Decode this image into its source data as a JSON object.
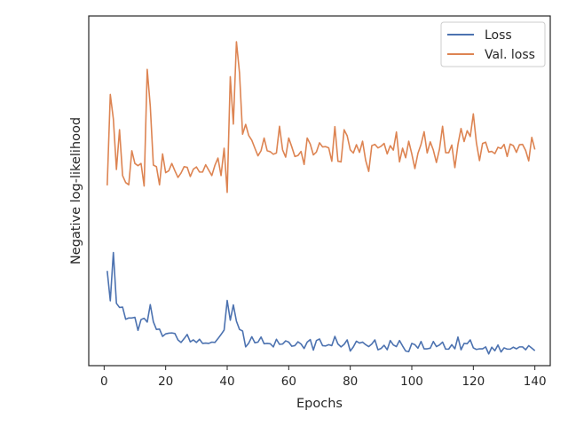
{
  "chart_data": {
    "type": "line",
    "title": "",
    "xlabel": "Epochs",
    "ylabel": "Negative log-likelihood",
    "xlim": [
      -5,
      145
    ],
    "ylim": [
      -5,
      105
    ],
    "xticks": [
      0,
      20,
      40,
      60,
      80,
      100,
      120,
      140
    ],
    "ytick_labels_shown": false,
    "grid": false,
    "legend_position": "top-right",
    "series": [
      {
        "name": "Loss",
        "color": "#4c72b0",
        "x": [
          1,
          2,
          3,
          4,
          5,
          6,
          7,
          8,
          9,
          10,
          11,
          12,
          13,
          14,
          15,
          16,
          17,
          18,
          19,
          20,
          21,
          22,
          23,
          24,
          25,
          26,
          27,
          28,
          29,
          30,
          31,
          32,
          33,
          34,
          35,
          36,
          37,
          38,
          39,
          40,
          41,
          42,
          43,
          44,
          45,
          46,
          47,
          48,
          49,
          50,
          51,
          52,
          53,
          54,
          55,
          56,
          57,
          58,
          59,
          60,
          61,
          62,
          63,
          64,
          65,
          66,
          67,
          68,
          69,
          70,
          71,
          72,
          73,
          74,
          75,
          76,
          77,
          78,
          79,
          80,
          81,
          82,
          83,
          84,
          85,
          86,
          87,
          88,
          89,
          90,
          91,
          92,
          93,
          94,
          95,
          96,
          97,
          98,
          99,
          100,
          101,
          102,
          103,
          104,
          105,
          106,
          107,
          108,
          109,
          110,
          111,
          112,
          113,
          114,
          115,
          116,
          117,
          118,
          119,
          120,
          121,
          122,
          123,
          124,
          125,
          126,
          127,
          128,
          129,
          130,
          131,
          132,
          133,
          134,
          135,
          136,
          137,
          138,
          139,
          140
        ],
        "values": [
          24.8,
          15.4,
          30.6,
          14.6,
          13.3,
          13.4,
          9.6,
          10.0,
          10.0,
          10.2,
          6.1,
          9.5,
          9.9,
          8.7,
          14.2,
          8.8,
          6.4,
          6.5,
          4.2,
          5.0,
          5.2,
          5.3,
          5.1,
          3.1,
          2.3,
          3.5,
          4.8,
          2.5,
          3.1,
          2.3,
          3.3,
          2.0,
          2.1,
          2.0,
          2.4,
          2.3,
          3.5,
          4.8,
          6.2,
          15.5,
          9.3,
          14.1,
          9.0,
          6.4,
          5.9,
          0.9,
          2.1,
          4.1,
          2.2,
          2.4,
          4.0,
          1.9,
          2.0,
          1.9,
          0.9,
          3.3,
          1.7,
          1.8,
          2.8,
          2.4,
          1.1,
          1.3,
          2.5,
          1.8,
          0.4,
          2.4,
          3.2,
          -0.1,
          2.9,
          3.4,
          1.3,
          1.2,
          1.6,
          1.3,
          4.2,
          1.8,
          0.9,
          1.7,
          3.1,
          -0.4,
          0.9,
          2.7,
          2.1,
          2.4,
          1.6,
          1.0,
          1.8,
          3.1,
          0.0,
          0.4,
          1.4,
          0.0,
          2.9,
          1.5,
          1.0,
          2.9,
          1.2,
          -0.4,
          -0.6,
          2.0,
          1.6,
          0.5,
          2.6,
          0.3,
          0.3,
          0.5,
          2.6,
          1.0,
          1.5,
          2.4,
          0.2,
          0.2,
          1.6,
          0.3,
          4.0,
          0.0,
          2.0,
          1.9,
          3.1,
          0.6,
          0.1,
          0.3,
          0.3,
          0.9,
          -1.3,
          0.8,
          -0.3,
          1.5,
          -0.7,
          0.6,
          0.2,
          0.2,
          0.8,
          0.3,
          0.9,
          0.9,
          0.0,
          1.3,
          0.5,
          -0.3
        ]
      },
      {
        "name": "Val. loss",
        "color": "#dd8452",
        "x": [
          1,
          2,
          3,
          4,
          5,
          6,
          7,
          8,
          9,
          10,
          11,
          12,
          13,
          14,
          15,
          16,
          17,
          18,
          19,
          20,
          21,
          22,
          23,
          24,
          25,
          26,
          27,
          28,
          29,
          30,
          31,
          32,
          33,
          34,
          35,
          36,
          37,
          38,
          39,
          40,
          41,
          42,
          43,
          44,
          45,
          46,
          47,
          48,
          49,
          50,
          51,
          52,
          53,
          54,
          55,
          56,
          57,
          58,
          59,
          60,
          61,
          62,
          63,
          64,
          65,
          66,
          67,
          68,
          69,
          70,
          71,
          72,
          73,
          74,
          75,
          76,
          77,
          78,
          79,
          80,
          81,
          82,
          83,
          84,
          85,
          86,
          87,
          88,
          89,
          90,
          91,
          92,
          93,
          94,
          95,
          96,
          97,
          98,
          99,
          100,
          101,
          102,
          103,
          104,
          105,
          106,
          107,
          108,
          109,
          110,
          111,
          112,
          113,
          114,
          115,
          116,
          117,
          118,
          119,
          120,
          121,
          122,
          123,
          124,
          125,
          126,
          127,
          128,
          129,
          130,
          131,
          132,
          133,
          134,
          135,
          136,
          137,
          138,
          139,
          140
        ],
        "values": [
          51.7,
          80.3,
          72.6,
          56.7,
          69.2,
          54.8,
          52.6,
          51.9,
          62.6,
          58.6,
          57.9,
          58.6,
          51.5,
          88.2,
          76.6,
          58.1,
          57.6,
          51.9,
          61.6,
          55.7,
          56.3,
          58.6,
          56.3,
          54.2,
          55.6,
          57.6,
          57.4,
          54.5,
          56.8,
          57.5,
          55.9,
          55.9,
          58.2,
          56.5,
          54.8,
          58.0,
          60.3,
          54.8,
          63.4,
          49.5,
          85.9,
          71.0,
          96.9,
          87.1,
          67.8,
          70.9,
          67.4,
          65.9,
          63.4,
          61.0,
          62.6,
          66.6,
          62.6,
          62.3,
          61.5,
          61.9,
          70.3,
          62.9,
          60.6,
          66.6,
          63.8,
          60.8,
          61.1,
          62.4,
          58.3,
          66.6,
          64.7,
          61.3,
          62.2,
          65.1,
          63.8,
          63.9,
          63.5,
          59.3,
          70.2,
          59.3,
          59.1,
          69.2,
          67.3,
          62.9,
          61.9,
          64.5,
          62.1,
          65.6,
          59.6,
          56.1,
          64.2,
          64.6,
          63.5,
          64.0,
          64.9,
          61.6,
          64.2,
          62.8,
          68.5,
          59.1,
          63.4,
          60.4,
          65.6,
          61.6,
          57.0,
          61.8,
          64.6,
          68.6,
          61.9,
          65.4,
          62.8,
          58.9,
          63.1,
          70.3,
          62.0,
          62.0,
          64.4,
          57.3,
          64.6,
          69.6,
          65.5,
          68.9,
          67.1,
          74.2,
          65.1,
          59.5,
          64.9,
          65.3,
          62.2,
          62.4,
          61.7,
          63.7,
          63.3,
          64.6,
          60.8,
          64.7,
          64.2,
          62.1,
          64.5,
          64.6,
          62.7,
          59.4,
          66.8,
          63.0
        ]
      }
    ]
  }
}
